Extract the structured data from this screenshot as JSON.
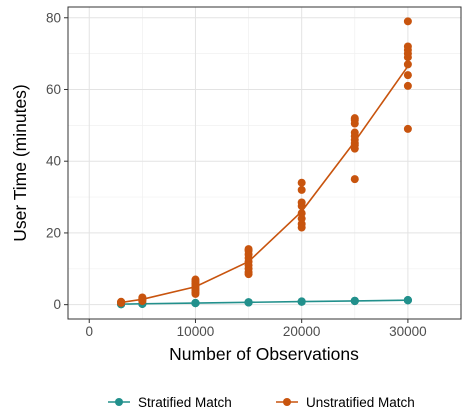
{
  "chart_data": {
    "type": "scatter",
    "xlabel": "Number of Observations",
    "ylabel": "User Time (minutes)",
    "xlim": [
      -2000,
      35000
    ],
    "ylim": [
      -4,
      83
    ],
    "x_ticks": [
      0,
      10000,
      20000,
      30000
    ],
    "x_tick_labels": [
      "0",
      "10000",
      "20000",
      "30000"
    ],
    "y_ticks": [
      0,
      20,
      40,
      60,
      80
    ],
    "y_tick_labels": [
      "0",
      "20",
      "40",
      "60",
      "80"
    ],
    "grid": true,
    "legend_position": "bottom",
    "series": [
      {
        "name": "Stratified Match",
        "color": "#22908c",
        "points": [
          [
            3000,
            0.1
          ],
          [
            3000,
            0.15
          ],
          [
            3000,
            0.2
          ],
          [
            3000,
            0.1
          ],
          [
            3000,
            0.15
          ],
          [
            5000,
            0.2
          ],
          [
            5000,
            0.25
          ],
          [
            5000,
            0.3
          ],
          [
            5000,
            0.2
          ],
          [
            5000,
            0.25
          ],
          [
            10000,
            0.4
          ],
          [
            10000,
            0.45
          ],
          [
            10000,
            0.5
          ],
          [
            10000,
            0.4
          ],
          [
            10000,
            0.45
          ],
          [
            15000,
            0.6
          ],
          [
            15000,
            0.65
          ],
          [
            15000,
            0.7
          ],
          [
            15000,
            0.6
          ],
          [
            15000,
            0.65
          ],
          [
            20000,
            0.8
          ],
          [
            20000,
            0.85
          ],
          [
            20000,
            0.9
          ],
          [
            20000,
            0.8
          ],
          [
            20000,
            0.85
          ],
          [
            25000,
            1.0
          ],
          [
            25000,
            1.05
          ],
          [
            25000,
            1.1
          ],
          [
            25000,
            1.0
          ],
          [
            25000,
            1.05
          ],
          [
            30000,
            1.2
          ],
          [
            30000,
            1.25
          ],
          [
            30000,
            1.3
          ],
          [
            30000,
            1.2
          ],
          [
            30000,
            1.25
          ]
        ],
        "line": [
          [
            3000,
            0.15
          ],
          [
            5000,
            0.25
          ],
          [
            10000,
            0.45
          ],
          [
            15000,
            0.65
          ],
          [
            20000,
            0.85
          ],
          [
            25000,
            1.05
          ],
          [
            30000,
            1.25
          ]
        ]
      },
      {
        "name": "Unstratified Match",
        "color": "#c8540e",
        "points": [
          [
            3000,
            0.5
          ],
          [
            3000,
            0.6
          ],
          [
            3000,
            0.8
          ],
          [
            3000,
            0.7
          ],
          [
            3000,
            0.55
          ],
          [
            5000,
            1.0
          ],
          [
            5000,
            1.2
          ],
          [
            5000,
            1.5
          ],
          [
            5000,
            1.8
          ],
          [
            5000,
            2.0
          ],
          [
            10000,
            3.0
          ],
          [
            10000,
            3.5
          ],
          [
            10000,
            4.0
          ],
          [
            10000,
            4.5
          ],
          [
            10000,
            5.0
          ],
          [
            10000,
            5.5
          ],
          [
            10000,
            6.0
          ],
          [
            10000,
            6.5
          ],
          [
            10000,
            7.0
          ],
          [
            15000,
            8.5
          ],
          [
            15000,
            9.0
          ],
          [
            15000,
            10.0
          ],
          [
            15000,
            11.0
          ],
          [
            15000,
            12.0
          ],
          [
            15000,
            13.0
          ],
          [
            15000,
            14.0
          ],
          [
            15000,
            15.0
          ],
          [
            15000,
            15.5
          ],
          [
            20000,
            21.5
          ],
          [
            20000,
            22.5
          ],
          [
            20000,
            24.0
          ],
          [
            20000,
            25.5
          ],
          [
            20000,
            27.5
          ],
          [
            20000,
            28.5
          ],
          [
            20000,
            32.0
          ],
          [
            20000,
            34.0
          ],
          [
            25000,
            35.0
          ],
          [
            25000,
            43.5
          ],
          [
            25000,
            44.5
          ],
          [
            25000,
            45.0
          ],
          [
            25000,
            46.0
          ],
          [
            25000,
            47.0
          ],
          [
            25000,
            48.0
          ],
          [
            25000,
            50.5
          ],
          [
            25000,
            51.5
          ],
          [
            25000,
            52.0
          ],
          [
            30000,
            49.0
          ],
          [
            30000,
            61.0
          ],
          [
            30000,
            64.0
          ],
          [
            30000,
            67.0
          ],
          [
            30000,
            69.0
          ],
          [
            30000,
            70.0
          ],
          [
            30000,
            71.0
          ],
          [
            30000,
            72.0
          ],
          [
            30000,
            79.0
          ]
        ],
        "line": [
          [
            3000,
            0.6
          ],
          [
            5000,
            1.5
          ],
          [
            10000,
            5.0
          ],
          [
            15000,
            12.0
          ],
          [
            20000,
            26.0
          ],
          [
            25000,
            45.5
          ],
          [
            30000,
            66.5
          ]
        ]
      }
    ]
  }
}
